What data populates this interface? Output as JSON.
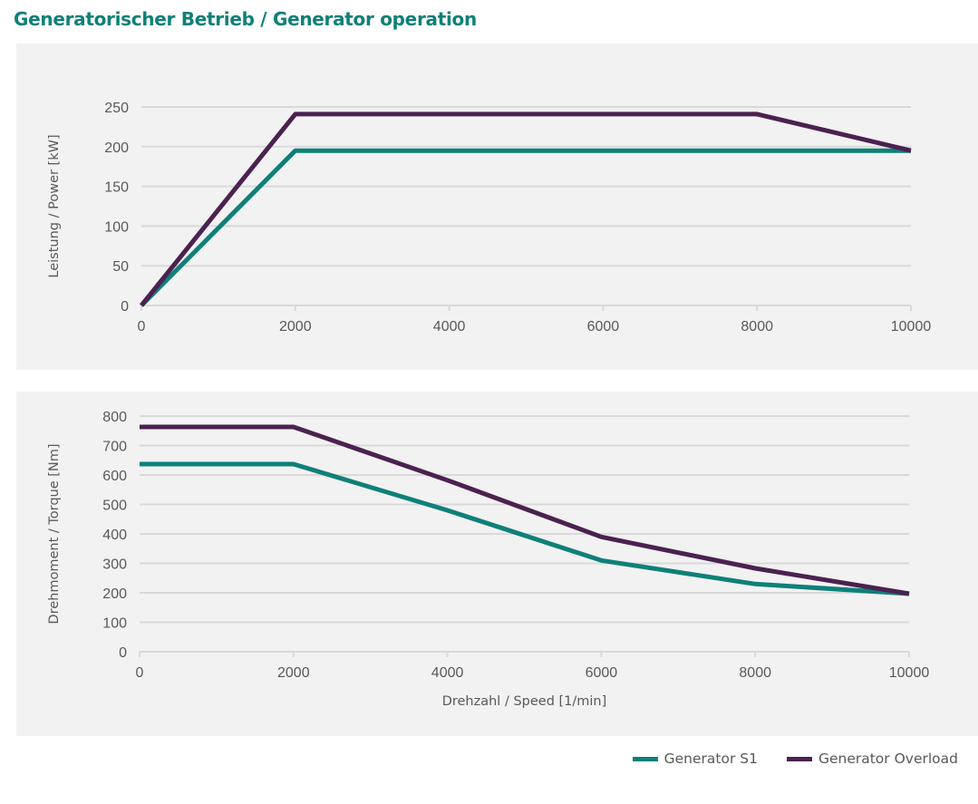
{
  "page": {
    "title": "Generatorischer Betrieb / Generator operation"
  },
  "legend": [
    {
      "name": "Generator S1",
      "color": "#0e8079"
    },
    {
      "name": "Generator Overload",
      "color": "#4b2150"
    }
  ],
  "chart_data": [
    {
      "type": "line",
      "title": "",
      "xlabel": "",
      "ylabel": "Leistung / Power [kW]",
      "xlim": [
        0,
        10000
      ],
      "ylim": [
        0,
        250
      ],
      "xticks": [
        0,
        2000,
        4000,
        6000,
        8000,
        10000
      ],
      "yticks": [
        0,
        50,
        100,
        150,
        200,
        250
      ],
      "grid": true,
      "x": [
        0,
        2000,
        4000,
        6000,
        8000,
        10000
      ],
      "series": [
        {
          "name": "Generator S1",
          "color": "#0e8079",
          "values": [
            0,
            195,
            195,
            195,
            195,
            195
          ]
        },
        {
          "name": "Generator Overload",
          "color": "#4b2150",
          "values": [
            0,
            241,
            241,
            241,
            241,
            195
          ]
        }
      ]
    },
    {
      "type": "line",
      "title": "",
      "xlabel": "Drehzahl / Speed [1/min]",
      "ylabel": "Drehmoment / Torque [Nm]",
      "xlim": [
        0,
        10000
      ],
      "ylim": [
        0,
        800
      ],
      "xticks": [
        0,
        2000,
        4000,
        6000,
        8000,
        10000
      ],
      "yticks": [
        0,
        100,
        200,
        300,
        400,
        500,
        600,
        700,
        800
      ],
      "grid": true,
      "legend": "bottom-right",
      "x": [
        0,
        2000,
        4000,
        6000,
        8000,
        10000
      ],
      "series": [
        {
          "name": "Generator S1",
          "color": "#0e8079",
          "values": [
            637,
            637,
            480,
            310,
            230,
            197
          ]
        },
        {
          "name": "Generator Overload",
          "color": "#4b2150",
          "values": [
            763,
            763,
            582,
            390,
            283,
            197
          ]
        }
      ]
    }
  ]
}
